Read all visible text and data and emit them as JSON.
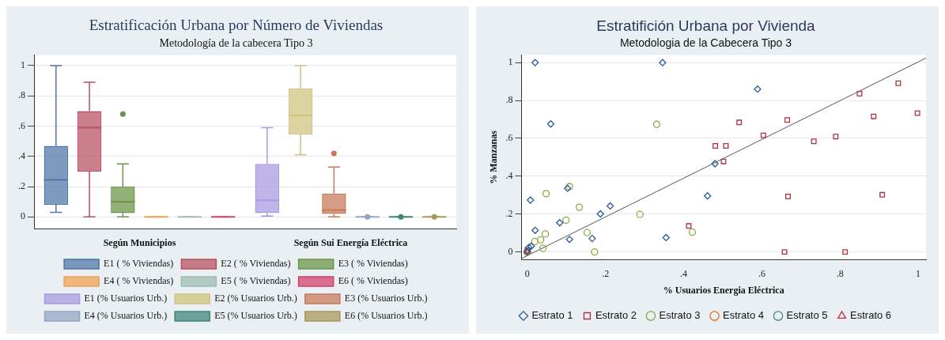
{
  "chart_data": [
    {
      "type": "box",
      "title": "Estratificación Urbana por Número de Viviendas",
      "subtitle": "Metodología de la cabecera Tipo 3",
      "categories": [
        "Según Municipios",
        "Según Sui Energía Eléctrica"
      ],
      "ylim": [
        -0.08,
        1.07
      ],
      "yticks": [
        {
          "value": 0,
          "label": "0"
        },
        {
          "value": 0.2,
          "label": ".2"
        },
        {
          "value": 0.4,
          "label": ".4"
        },
        {
          "value": 0.6,
          "label": ".6"
        },
        {
          "value": 0.8,
          "label": ".8"
        },
        {
          "value": 1,
          "label": "1"
        }
      ],
      "grid": "y",
      "legend": "bottom",
      "series": [
        {
          "name": "E1 ( % Viviendas)",
          "color": "#4f76a6",
          "boxes": [
            {
              "low": 0.03,
              "q1": 0.08,
              "median": 0.245,
              "q3": 0.47,
              "high": 1.0
            },
            null
          ]
        },
        {
          "name": "E2 ( % Viviendas)",
          "color": "#b8505f",
          "boxes": [
            {
              "low": 0,
              "q1": 0.3,
              "median": 0.59,
              "q3": 0.7,
              "high": 0.89
            },
            null
          ]
        },
        {
          "name": "E3 ( % Viviendas)",
          "color": "#6a9448",
          "boxes": [
            {
              "low": 0,
              "q1": 0.025,
              "median": 0.1,
              "q3": 0.2,
              "high": 0.35,
              "outliers": [
                0.68
              ]
            },
            null
          ]
        },
        {
          "name": "E4 ( % Viviendas)",
          "color": "#f0a050",
          "boxes": [
            {
              "low": 0,
              "q1": 0,
              "median": 0,
              "q3": 0,
              "high": 0
            },
            null
          ]
        },
        {
          "name": "E5 ( % Viviendas)",
          "color": "#9ebcae",
          "boxes": [
            {
              "low": 0,
              "q1": 0,
              "median": 0,
              "q3": 0,
              "high": 0
            },
            null
          ]
        },
        {
          "name": "E6 ( % Viviendas)",
          "color": "#d0406a",
          "boxes": [
            {
              "low": 0,
              "q1": 0,
              "median": 0,
              "q3": 0,
              "high": 0
            },
            null
          ]
        },
        {
          "name": "E1 (% Usuarios Urb.)",
          "color": "#a89ae0",
          "boxes": [
            null,
            {
              "low": 0.005,
              "q1": 0.025,
              "median": 0.11,
              "q3": 0.35,
              "high": 0.59
            }
          ]
        },
        {
          "name": "E2 (% Usuarios Urb.)",
          "color": "#cfc47e",
          "boxes": [
            null,
            {
              "low": 0.41,
              "q1": 0.545,
              "median": 0.67,
              "q3": 0.85,
              "high": 1.0
            }
          ]
        },
        {
          "name": "E3 (% Usuarios Urb.)",
          "color": "#c8785a",
          "boxes": [
            null,
            {
              "low": 0,
              "q1": 0.02,
              "median": 0.045,
              "q3": 0.155,
              "high": 0.33,
              "outliers": [
                0.42
              ]
            }
          ]
        },
        {
          "name": "E4 (% Usuarios Urb.)",
          "color": "#92a6c4",
          "boxes": [
            null,
            {
              "low": 0,
              "q1": 0,
              "median": 0,
              "q3": 0,
              "high": 0,
              "outliers": [
                0
              ]
            }
          ]
        },
        {
          "name": "E5 (% Usuarios Urb.)",
          "color": "#3f8478",
          "boxes": [
            null,
            {
              "low": 0,
              "q1": 0,
              "median": 0,
              "q3": 0,
              "high": 0,
              "outliers": [
                0
              ]
            }
          ]
        },
        {
          "name": "E6 (% Usuarios Urb.)",
          "color": "#a8985a",
          "boxes": [
            null,
            {
              "low": 0,
              "q1": 0,
              "median": 0,
              "q3": 0,
              "high": 0,
              "outliers": [
                0
              ]
            }
          ]
        }
      ]
    },
    {
      "type": "scatter",
      "title": "Estratifición Urbana por Vivienda",
      "subtitle": "Metodologia de la Cabecera Tipo 3",
      "xlabel": "% Usuarios Energia Eléctrica",
      "ylabel": "% Manzanas",
      "xlim": [
        -0.015,
        1.02
      ],
      "xticks": [
        {
          "value": 0,
          "label": "0"
        },
        {
          "value": 0.2,
          "label": ".2"
        },
        {
          "value": 0.4,
          "label": ".4"
        },
        {
          "value": 0.6,
          "label": ".6"
        },
        {
          "value": 0.8,
          "label": ".8"
        },
        {
          "value": 1,
          "label": "1"
        }
      ],
      "ylim": [
        -0.04,
        1.04
      ],
      "yticks": [
        {
          "value": 0,
          "label": "0"
        },
        {
          "value": 0.2,
          "label": ".2"
        },
        {
          "value": 0.4,
          "label": ".4"
        },
        {
          "value": 0.6,
          "label": ".6"
        },
        {
          "value": 0.8,
          "label": ".8"
        },
        {
          "value": 1,
          "label": "1"
        }
      ],
      "grid": "y",
      "legend": "bottom",
      "series": [
        {
          "name": "Estrato 1",
          "color": "#2a5a9a",
          "marker": "diamond",
          "x": [
            0.02,
            0.346,
            0.06,
            0.589,
            0.48,
            0.008,
            0.02,
            0.103,
            0.212,
            0.187,
            0.083,
            0.108,
            0.166,
            0.355,
            0.461,
            0.004,
            0.0,
            0.01
          ],
          "values": [
            1.0,
            1.0,
            0.676,
            0.86,
            0.466,
            0.274,
            0.114,
            0.336,
            0.243,
            0.201,
            0.154,
            0.066,
            0.071,
            0.076,
            0.296,
            0.024,
            0.0,
            0.03
          ]
        },
        {
          "name": "Estrato 2",
          "color": "#b03040",
          "marker": "square",
          "x": [
            0.481,
            0.508,
            0.542,
            0.604,
            0.665,
            0.733,
            0.789,
            0.85,
            0.886,
            0.949,
            0.998,
            0.502,
            0.413,
            0.667,
            0.658,
            0.813,
            0.908,
            0.0
          ],
          "values": [
            0.56,
            0.56,
            0.684,
            0.616,
            0.697,
            0.584,
            0.609,
            0.836,
            0.716,
            0.891,
            0.733,
            0.478,
            0.137,
            0.293,
            0.0,
            0.0,
            0.302,
            0.01
          ]
        },
        {
          "name": "Estrato 3",
          "color": "#8aaa40",
          "marker": "circle",
          "x": [
            0.331,
            0.108,
            0.048,
            0.133,
            0.099,
            0.288,
            0.153,
            0.046,
            0.034,
            0.019,
            0.04,
            0.172,
            0.422,
            0.0
          ],
          "values": [
            0.674,
            0.345,
            0.308,
            0.236,
            0.168,
            0.198,
            0.102,
            0.095,
            0.064,
            0.055,
            0.019,
            0.0,
            0.104,
            0.0
          ]
        },
        {
          "name": "Estrato 4",
          "color": "#e07010",
          "marker": "circle",
          "x": [
            0.0
          ],
          "values": [
            0.0
          ]
        },
        {
          "name": "Estrato 5",
          "color": "#4a8a7a",
          "marker": "circle",
          "x": [
            0.0
          ],
          "values": [
            0.0
          ]
        },
        {
          "name": "Estrato 6",
          "color": "#c83040",
          "marker": "triangle",
          "x": [
            0.0
          ],
          "values": [
            0.0
          ]
        },
        {
          "type": "line",
          "color": "#555555",
          "marker": "none",
          "x": [
            -0.015,
            1.02
          ],
          "values": [
            -0.035,
            1.024
          ]
        }
      ]
    }
  ]
}
